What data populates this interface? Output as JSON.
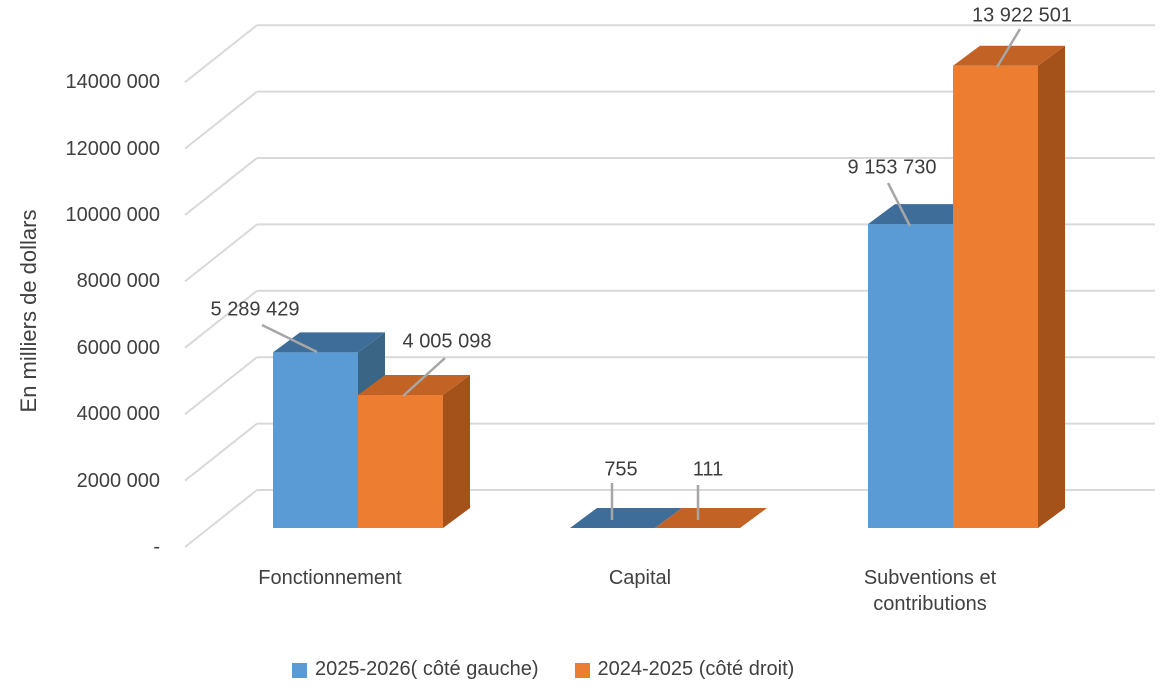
{
  "chart_data": {
    "type": "bar",
    "variant": "3d-clustered-column",
    "title": "",
    "y_axis_title": "En milliers de dollars",
    "categories": [
      "Fonctionnement",
      "Capital",
      "Subventions et contributions"
    ],
    "series": [
      {
        "name": "2025-2026( côté gauche)",
        "values": [
          5289429,
          755,
          9153730
        ],
        "labels": [
          "5 289 429",
          "755",
          "9 153 730"
        ],
        "color": "#5B9BD5",
        "color_top": "#3E6D99",
        "color_side": "#3A6585"
      },
      {
        "name": "2024-2025 (côté droit)",
        "values": [
          4005098,
          111,
          13922501
        ],
        "labels": [
          "4 005 098",
          "111",
          "13 922 501"
        ],
        "color": "#ED7D31",
        "color_top": "#C26325",
        "color_side": "#A5511A"
      }
    ],
    "y_ticks": [
      "-",
      "2000 000",
      "4000 000",
      "6000 000",
      "8000 000",
      "10000 000",
      "12000 000",
      "14000 000"
    ],
    "ylim": [
      0,
      14000000
    ],
    "grid": true,
    "legend_position": "bottom",
    "gridline_color": "#D9D9D9",
    "leader_color": "#A6A6A6",
    "text_color": "#404040"
  },
  "legend": {
    "items": [
      {
        "label": "2025-2026( côté gauche)",
        "color": "#5B9BD5"
      },
      {
        "label": "2024-2025 (côté droit)",
        "color": "#ED7D31"
      }
    ]
  }
}
